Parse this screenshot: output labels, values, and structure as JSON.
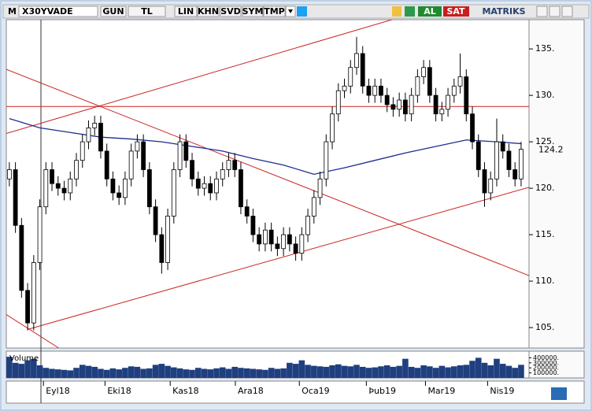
{
  "toolbar": {
    "logo": "M",
    "symbol": "X30YVADE",
    "buttons": [
      "GUN",
      "TL",
      "LIN",
      "KHN",
      "SVD",
      "SYM",
      "TMP"
    ],
    "buy": "AL",
    "sell": "SAT",
    "brand": "MATRIKS"
  },
  "chart_data": {
    "type": "candlestick",
    "xlim": [
      -0.5,
      85.3
    ],
    "xticks": [
      {
        "value": 5.6,
        "label": "Eyl18"
      },
      {
        "value": 15.7,
        "label": "Eki18"
      },
      {
        "value": 26.4,
        "label": "Kas18"
      },
      {
        "value": 37.1,
        "label": "Ara18"
      },
      {
        "value": 47.6,
        "label": "Oca19"
      },
      {
        "value": 58.6,
        "label": "Þub19"
      },
      {
        "value": 68.3,
        "label": "Mar19"
      },
      {
        "value": 78.5,
        "label": "Nis19"
      }
    ],
    "ylim": [
      102.8,
      138.4
    ],
    "yticks": [
      {
        "value": 105,
        "label": "105."
      },
      {
        "value": 110,
        "label": "110."
      },
      {
        "value": 115,
        "label": "115."
      },
      {
        "value": 120,
        "label": "120."
      },
      {
        "value": 125,
        "label": "125."
      },
      {
        "value": 130,
        "label": "130."
      },
      {
        "value": 135,
        "label": "135."
      }
    ],
    "candles": {
      "open": [
        121,
        122,
        116,
        109,
        105.5,
        112,
        118,
        122,
        120.5,
        120,
        119.5,
        121,
        123,
        125,
        126.5,
        127,
        124,
        121,
        119.5,
        119,
        121,
        124,
        125,
        122,
        118,
        115,
        112,
        117,
        122,
        125,
        123,
        121,
        120,
        120.5,
        119.5,
        121,
        122,
        123,
        122,
        118,
        117,
        115,
        114,
        115.5,
        114,
        113.5,
        115,
        114,
        113,
        115,
        117,
        119,
        121,
        125,
        128,
        130.5,
        131,
        133,
        134.5,
        131,
        130,
        131,
        130,
        129,
        128.5,
        129.5,
        128,
        130,
        132,
        133,
        130,
        128,
        128.5,
        130,
        131,
        132,
        128,
        125,
        122,
        119.5,
        121,
        125,
        124,
        122,
        121
      ],
      "high": [
        122.8,
        122.8,
        116.8,
        109.8,
        112.8,
        118.8,
        122.8,
        122.8,
        121.3,
        120.8,
        121.8,
        123.8,
        125.8,
        127.3,
        127.8,
        127.8,
        124.8,
        121.8,
        120.3,
        121.8,
        124.8,
        125.8,
        125.8,
        122.8,
        118.8,
        115.8,
        117.8,
        122.8,
        125.8,
        125.8,
        123.8,
        121.8,
        121.3,
        121.3,
        121.8,
        122.8,
        123.8,
        123.8,
        122.8,
        118.8,
        117.8,
        115.8,
        116.3,
        116.3,
        114.8,
        115.8,
        115.8,
        114.8,
        115.8,
        117.8,
        119.8,
        121.8,
        125.8,
        128.8,
        131.3,
        131.8,
        133.8,
        136.3,
        135.3,
        131.8,
        131.8,
        131.8,
        130.8,
        129.8,
        130.3,
        130.3,
        130.8,
        132.8,
        133.8,
        133.8,
        130.8,
        129.3,
        130.8,
        131.8,
        134.5,
        132.8,
        128.8,
        125.8,
        122.8,
        121.8,
        127.5,
        125.8,
        124.8,
        122.8,
        125
      ],
      "low": [
        120.2,
        115.2,
        108.2,
        104.7,
        104.7,
        111.2,
        117.2,
        119.7,
        119.2,
        118.7,
        118.7,
        120.2,
        122.2,
        124.2,
        125.7,
        123.2,
        120.2,
        118.7,
        118.2,
        118.2,
        120.2,
        123.2,
        121.2,
        117.2,
        114.2,
        110.8,
        111.2,
        116.2,
        121.2,
        122.2,
        120.2,
        119.2,
        119.2,
        118.7,
        118.7,
        120.2,
        121.2,
        121.2,
        117.2,
        116.2,
        114.2,
        113.2,
        113.2,
        113.2,
        112.7,
        112.7,
        113.2,
        112.2,
        112.2,
        114.2,
        116.2,
        118.2,
        120.2,
        124.2,
        127.2,
        129.7,
        130.2,
        132.2,
        130.2,
        129.2,
        129.2,
        129.2,
        128.2,
        127.7,
        127.7,
        127.2,
        127.2,
        129.2,
        131.2,
        129.2,
        127.2,
        127.2,
        127.7,
        129.2,
        130.2,
        127.2,
        124.2,
        121.2,
        118,
        118.7,
        120.2,
        123.2,
        121.2,
        120.2,
        120.2
      ],
      "close": [
        122,
        116,
        109,
        105.5,
        112,
        118,
        122,
        120.5,
        120,
        119.5,
        121,
        123,
        125,
        126.5,
        127,
        124,
        121,
        119.5,
        119,
        121,
        124,
        125,
        122,
        118,
        115,
        112,
        117,
        122,
        125,
        123,
        121,
        120,
        120.5,
        119.5,
        121,
        122,
        123,
        122,
        118,
        117,
        115,
        114,
        115.5,
        114,
        113.5,
        115,
        114,
        113,
        115,
        117,
        119,
        121,
        125,
        128,
        130.5,
        131,
        133,
        134.5,
        131,
        130,
        131,
        130,
        129,
        128.5,
        129.5,
        128,
        130,
        132,
        133,
        130,
        128,
        128.5,
        130,
        131,
        132,
        128,
        125,
        122,
        119.5,
        121,
        125,
        124,
        122,
        121,
        124.2
      ],
      "up_color": "#ffffff",
      "down_color": "#000000"
    },
    "moving_average": {
      "color": "#1f2d8f",
      "x": [
        0,
        5,
        10,
        15,
        20,
        25,
        30,
        35,
        40,
        45,
        50,
        55,
        60,
        65,
        70,
        75,
        80,
        84
      ],
      "values": [
        127.5,
        126.5,
        126,
        125.5,
        125.3,
        125,
        124.5,
        124,
        123.2,
        122.5,
        121.5,
        122.2,
        123,
        123.8,
        124.5,
        125.2,
        125,
        124.8
      ]
    },
    "trend_lines": {
      "color": "#cc2222",
      "lines": [
        {
          "x": [
            -0.5,
            85.3
          ],
          "values": [
            128.8,
            128.8
          ]
        },
        {
          "x": [
            -0.5,
            64.1
          ],
          "values": [
            125.9,
            138.4
          ]
        },
        {
          "x": [
            -0.5,
            85.3
          ],
          "values": [
            132.8,
            110.6
          ]
        },
        {
          "x": [
            3,
            85.3
          ],
          "values": [
            104.8,
            120.1
          ]
        },
        {
          "x": [
            -0.5,
            8.1
          ],
          "values": [
            106.4,
            102.8
          ]
        }
      ]
    },
    "volume": {
      "label": "Volume",
      "color": "#1f3f7f",
      "ylim": [
        0,
        500000
      ],
      "yticks": [
        {
          "value": 100000,
          "label": "100000."
        },
        {
          "value": 200000,
          "label": "200000."
        },
        {
          "value": 300000,
          "label": "300000."
        },
        {
          "value": 400000,
          "label": "400000."
        }
      ],
      "values": [
        420000,
        300000,
        280000,
        350000,
        380000,
        250000,
        200000,
        180000,
        170000,
        160000,
        150000,
        200000,
        260000,
        240000,
        220000,
        180000,
        160000,
        190000,
        170000,
        200000,
        230000,
        220000,
        180000,
        190000,
        260000,
        280000,
        240000,
        210000,
        190000,
        170000,
        160000,
        200000,
        180000,
        170000,
        190000,
        210000,
        180000,
        220000,
        200000,
        190000,
        180000,
        170000,
        160000,
        200000,
        180000,
        190000,
        300000,
        280000,
        350000,
        260000,
        240000,
        230000,
        220000,
        250000,
        270000,
        240000,
        230000,
        260000,
        220000,
        200000,
        210000,
        230000,
        250000,
        220000,
        240000,
        380000,
        220000,
        200000,
        250000,
        230000,
        200000,
        240000,
        210000,
        230000,
        250000,
        260000,
        340000,
        400000,
        300000,
        250000,
        380000,
        280000,
        240000,
        200000,
        260000
      ]
    }
  }
}
